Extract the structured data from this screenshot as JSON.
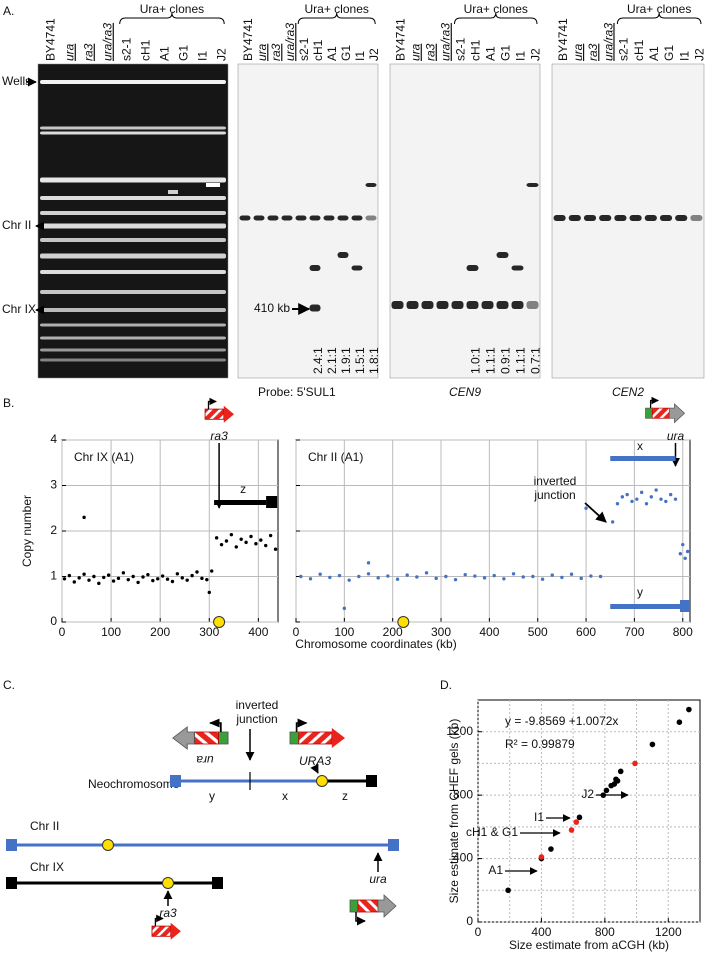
{
  "panel_labels": [
    "A.",
    "B.",
    "C.",
    "D."
  ],
  "panel_a": {
    "lanes": [
      "BY4741",
      "ura",
      "ra3",
      "ura/ra3",
      "s2-1",
      "cH1",
      "A1",
      "G1",
      "I1",
      "J2"
    ],
    "group_label": "Ura+ clones",
    "markers": [
      "Wells",
      "Chr II",
      "Chr IX"
    ],
    "size_marker": "410 kb",
    "ratios_sul1": [
      "2.4:1",
      "2.1:1",
      "1.9:1",
      "1.5:1",
      "1.8:1"
    ],
    "ratios_cen9": [
      "1.0:1",
      "1.1:1",
      "0.9:1",
      "1.1:1",
      "0.7:1"
    ],
    "probes": [
      "Probe: 5'SUL1",
      "CEN9",
      "CEN2"
    ]
  },
  "panel_c": {
    "junction_label": [
      "inverted",
      "junction"
    ],
    "neo_label": "Neochromosome",
    "neo_gene_left": "ura",
    "neo_gene_right": "URA3",
    "segments": [
      "y",
      "x",
      "z"
    ],
    "chr2": "Chr II",
    "chr9": "Chr IX",
    "chr2_gene": "ura",
    "chr9_gene": "ra3"
  },
  "chart_data": [
    {
      "type": "scatter",
      "title": "Chr IX (A1)",
      "ylabel": "Copy number",
      "xlim": [
        0,
        440
      ],
      "xticks": [
        0,
        100,
        200,
        300,
        400
      ],
      "ylim": [
        0,
        4
      ],
      "yticks": [
        0,
        1,
        2,
        3,
        4
      ],
      "grid": true,
      "annotations": [
        "ra3",
        "z"
      ],
      "series": [
        {
          "color": "#000000",
          "x": [
            5,
            15,
            25,
            35,
            45,
            55,
            65,
            75,
            85,
            95,
            105,
            115,
            125,
            135,
            145,
            155,
            165,
            175,
            185,
            195,
            205,
            215,
            225,
            235,
            245,
            255,
            265,
            275,
            285,
            295,
            305,
            315,
            325,
            335,
            345,
            355,
            365,
            375,
            385,
            395,
            405,
            415,
            425,
            435,
            45,
            300
          ],
          "values": [
            0.95,
            1.02,
            0.88,
            0.97,
            1.05,
            0.92,
            1.0,
            0.85,
            0.98,
            1.03,
            0.9,
            0.96,
            1.08,
            0.93,
            1.0,
            0.87,
            0.99,
            1.04,
            0.91,
            0.95,
            1.01,
            0.94,
            0.89,
            1.06,
            0.97,
            0.92,
            1.02,
            1.1,
            0.96,
            0.93,
            1.12,
            1.85,
            1.7,
            1.78,
            1.92,
            1.65,
            1.82,
            1.75,
            1.88,
            1.72,
            1.8,
            1.68,
            1.9,
            1.6,
            2.3,
            0.65
          ]
        }
      ]
    },
    {
      "type": "scatter",
      "title": "Chr II (A1)",
      "xlabel": "Chromosome coordinates (kb)",
      "xlim": [
        0,
        815
      ],
      "xticks": [
        0,
        100,
        200,
        300,
        400,
        500,
        600,
        700,
        800
      ],
      "ylim": [
        0,
        4
      ],
      "yticks": [
        0,
        1,
        2,
        3,
        4
      ],
      "grid": true,
      "annotations": [
        "ura",
        "x",
        "y"
      ],
      "junction_label": [
        "inverted",
        "junction"
      ],
      "series": [
        {
          "color": "#4472c4",
          "x": [
            10,
            30,
            50,
            70,
            90,
            110,
            130,
            150,
            170,
            190,
            210,
            230,
            250,
            270,
            290,
            310,
            330,
            350,
            370,
            390,
            410,
            430,
            450,
            470,
            490,
            510,
            530,
            550,
            570,
            590,
            610,
            630,
            655,
            665,
            675,
            685,
            695,
            705,
            715,
            725,
            735,
            745,
            755,
            765,
            775,
            785,
            795,
            800,
            805,
            810,
            150,
            600,
            100
          ],
          "values": [
            1.0,
            0.95,
            1.05,
            0.98,
            1.02,
            0.92,
            1.0,
            1.06,
            0.97,
            1.01,
            0.94,
            1.03,
            0.99,
            1.08,
            0.96,
            1.0,
            0.93,
            1.04,
            1.01,
            0.97,
            1.02,
            0.95,
            1.06,
            0.99,
            1.0,
            0.94,
            1.03,
            0.98,
            1.05,
            0.96,
            1.01,
            1.0,
            2.2,
            2.6,
            2.75,
            2.8,
            2.65,
            2.7,
            2.85,
            2.6,
            2.75,
            2.9,
            2.7,
            2.65,
            2.8,
            2.7,
            1.5,
            1.7,
            1.4,
            1.55,
            1.3,
            2.5,
            0.3
          ]
        }
      ]
    },
    {
      "type": "scatter",
      "xlabel": "Size estimate from aCGH (kb)",
      "ylabel": "Size estimate from CHEF gels (kb)",
      "xlim": [
        0,
        1400
      ],
      "xticks": [
        0,
        400,
        800,
        1200
      ],
      "ylim": [
        0,
        1400
      ],
      "yticks": [
        0,
        400,
        800,
        1200
      ],
      "grid": true,
      "equation": "y = -9.8569 +1.0072x",
      "r_squared": "R² = 0.99879",
      "point_labels": [
        "J2",
        "I1",
        "cH1 & G1",
        "A1"
      ],
      "series": [
        {
          "color": "#000000",
          "x": [
            190,
            400,
            460,
            640,
            790,
            810,
            840,
            860,
            870,
            880,
            900,
            1100,
            1270,
            1330
          ],
          "values": [
            200,
            400,
            460,
            660,
            800,
            830,
            860,
            870,
            900,
            890,
            950,
            1120,
            1260,
            1340
          ]
        },
        {
          "color": "#e8241c",
          "x": [
            400,
            590,
            620,
            990
          ],
          "values": [
            410,
            580,
            630,
            1000
          ]
        }
      ]
    }
  ]
}
